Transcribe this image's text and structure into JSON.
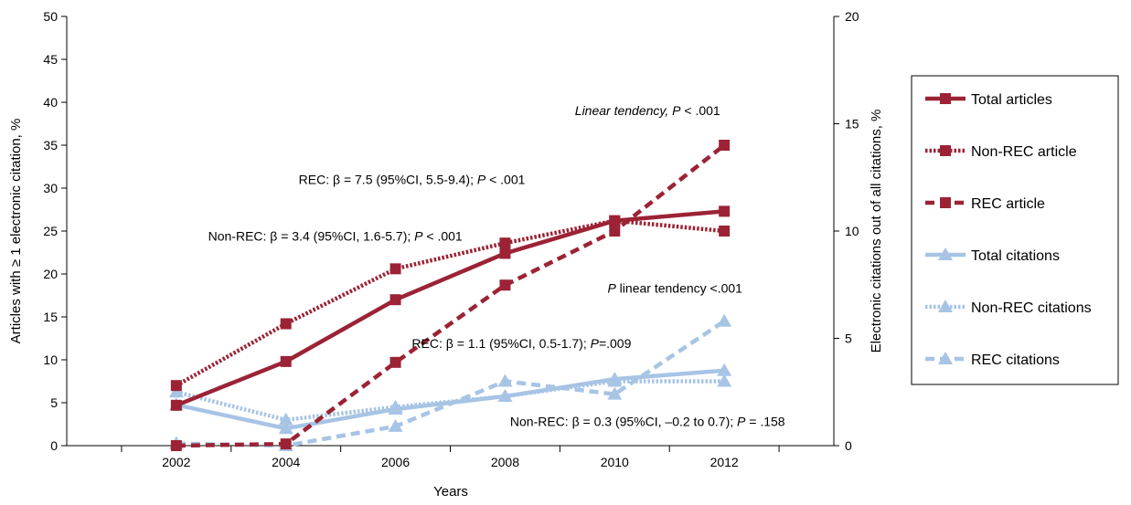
{
  "chart_data": {
    "type": "line",
    "xlabel": "Years",
    "ylabel": "Articles with ≥ 1 electronic citation, %",
    "y2label": "Electronic citations out of all citations, %",
    "x": [
      2002,
      2004,
      2006,
      2008,
      2010,
      2012
    ],
    "xlim": [
      2000,
      2014
    ],
    "ylim": [
      0,
      50
    ],
    "y2lim": [
      0,
      20
    ],
    "y_ticks": [
      "0",
      "5",
      "10",
      "15",
      "20",
      "25",
      "30",
      "35",
      "40",
      "45",
      "50"
    ],
    "y2_ticks": [
      "0",
      "5",
      "10",
      "15",
      "20"
    ],
    "x_ticks": [
      "2002",
      "2004",
      "2006",
      "2008",
      "2010",
      "2012"
    ],
    "grid": false,
    "legend_position": "right",
    "series": [
      {
        "name": "Total articles",
        "axis": "left",
        "values": [
          4.7,
          9.8,
          17.0,
          22.4,
          26.2,
          27.3
        ],
        "color": "#9b2335",
        "dash": "solid",
        "marker": "square"
      },
      {
        "name": "Non-REC article",
        "axis": "left",
        "values": [
          7.0,
          14.2,
          20.6,
          23.6,
          26.2,
          25.0
        ],
        "color": "#9b2335",
        "dash": "dotted",
        "marker": "square"
      },
      {
        "name": "REC article",
        "axis": "left",
        "values": [
          0.0,
          0.2,
          9.7,
          18.7,
          25.0,
          35.0
        ],
        "color": "#9b2335",
        "dash": "dashed",
        "marker": "square"
      },
      {
        "name": "Total citations",
        "axis": "right",
        "values": [
          1.9,
          0.8,
          1.7,
          2.3,
          3.1,
          3.5
        ],
        "color": "#a7c4e5",
        "dash": "solid",
        "marker": "triangle"
      },
      {
        "name": "Non-REC citations",
        "axis": "right",
        "values": [
          2.5,
          1.2,
          1.8,
          2.3,
          3.0,
          3.0
        ],
        "color": "#a7c4e5",
        "dash": "dotted",
        "marker": "triangle"
      },
      {
        "name": "REC citations",
        "axis": "right",
        "values": [
          0.1,
          0.0,
          0.9,
          3.0,
          2.4,
          5.8
        ],
        "color": "#a7c4e5",
        "dash": "dashed",
        "marker": "triangle"
      }
    ],
    "annotations": [
      {
        "italic": "Linear tendency, ",
        "prefix": "",
        "p": "P",
        "rest": " < .001",
        "data_x": 2010.6,
        "data_y": 38.5
      },
      {
        "prefix": "REC: β = 7.5 (95%CI, 5.5-9.4); ",
        "p": "P",
        "rest": " < .001",
        "data_x": 2006.3,
        "data_y": 30.5
      },
      {
        "prefix": "Non-REC: β = 3.4 (95%CI, 1.6-5.7); ",
        "p": "P",
        "rest": " < .001",
        "data_x": 2004.9,
        "data_y": 23.9
      },
      {
        "prefix": "",
        "p": "P",
        "rest": " linear tendency <.001",
        "data_x": 2011.1,
        "data_y": 17.8
      },
      {
        "prefix": "REC: β = 1.1 (95%CI, 0.5-1.7); ",
        "p": "P",
        "rest": "=.009",
        "data_x": 2008.3,
        "data_y": 11.4
      },
      {
        "prefix": "Non-REC: β = 0.3 (95%CI,  –0.2 to 0.7); ",
        "p": "P",
        "rest": " = .158",
        "data_x": 2010.6,
        "data_y": 2.3
      }
    ]
  }
}
